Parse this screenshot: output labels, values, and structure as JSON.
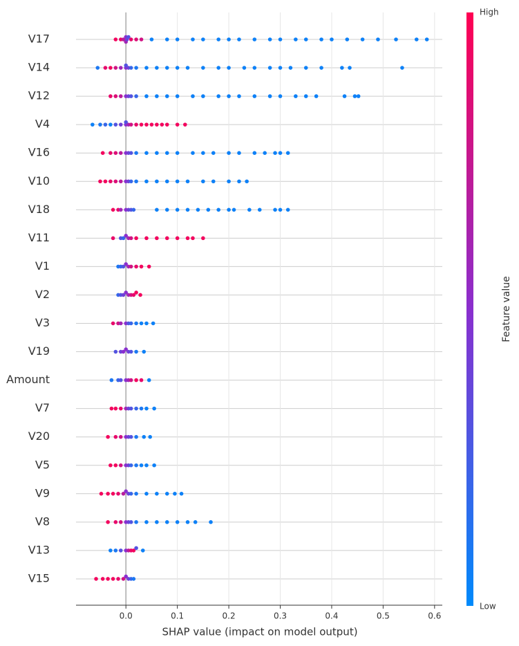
{
  "chart_data": {
    "type": "beeswarm",
    "xlabel": "SHAP value (impact on model output)",
    "xlim": [
      -0.097,
      0.615
    ],
    "xticks": [
      {
        "value": 0,
        "label": "0.0"
      },
      0.1,
      0.2,
      0.3,
      0.4,
      0.5,
      0.6
    ],
    "grid": true,
    "colormap": [
      "#008afb",
      "#8a2fce",
      "#ff0052"
    ],
    "colorbar": {
      "label": "Feature value",
      "high_label": "High",
      "low_label": "Low"
    },
    "series": [
      {
        "name": "V17",
        "values": [
          -0.02,
          -0.01,
          -0.005,
          0,
          0,
          0.002,
          0.005,
          0.01,
          0.02,
          0.03,
          0.05,
          0.08,
          0.1,
          0.13,
          0.15,
          0.18,
          0.2,
          0.22,
          0.25,
          0.28,
          0.3,
          0.33,
          0.35,
          0.38,
          0.4,
          0.43,
          0.46,
          0.49,
          0.525,
          0.565,
          0.585
        ],
        "feature_values": [
          0.95,
          0.9,
          0.7,
          0.5,
          0.6,
          0.4,
          0.3,
          0.9,
          0.85,
          0.8,
          0.05,
          0.05,
          0.05,
          0.05,
          0.05,
          0.05,
          0.05,
          0.05,
          0.05,
          0.05,
          0.05,
          0.05,
          0.05,
          0.05,
          0.05,
          0.05,
          0.05,
          0.05,
          0.05,
          0.05,
          0.05
        ]
      },
      {
        "name": "V14",
        "values": [
          -0.055,
          -0.04,
          -0.03,
          -0.02,
          -0.01,
          0,
          0,
          0.005,
          0.01,
          0.02,
          0.04,
          0.06,
          0.08,
          0.1,
          0.12,
          0.15,
          0.18,
          0.2,
          0.23,
          0.25,
          0.28,
          0.3,
          0.32,
          0.35,
          0.38,
          0.42,
          0.435,
          0.537
        ],
        "feature_values": [
          0.1,
          0.9,
          0.95,
          0.8,
          0.6,
          0.5,
          0.3,
          0.4,
          0.2,
          0.1,
          0.05,
          0.05,
          0.05,
          0.05,
          0.05,
          0.05,
          0.05,
          0.05,
          0.05,
          0.05,
          0.05,
          0.05,
          0.05,
          0.05,
          0.05,
          0.05,
          0.05,
          0.05
        ]
      },
      {
        "name": "V12",
        "values": [
          -0.03,
          -0.02,
          -0.01,
          0,
          0.005,
          0.01,
          0.02,
          0.04,
          0.06,
          0.08,
          0.1,
          0.13,
          0.15,
          0.18,
          0.2,
          0.22,
          0.25,
          0.28,
          0.3,
          0.33,
          0.35,
          0.37,
          0.425,
          0.445,
          0.452
        ],
        "feature_values": [
          0.9,
          0.85,
          0.7,
          0.5,
          0.4,
          0.3,
          0.2,
          0.05,
          0.05,
          0.05,
          0.05,
          0.05,
          0.05,
          0.05,
          0.05,
          0.05,
          0.05,
          0.05,
          0.05,
          0.05,
          0.05,
          0.05,
          0.05,
          0.05,
          0.05
        ]
      },
      {
        "name": "V4",
        "values": [
          -0.065,
          -0.05,
          -0.04,
          -0.03,
          -0.02,
          -0.01,
          0,
          0,
          0.005,
          0.01,
          0.02,
          0.03,
          0.04,
          0.05,
          0.06,
          0.07,
          0.08,
          0.1,
          0.115
        ],
        "feature_values": [
          0.05,
          0.1,
          0.2,
          0.05,
          0.3,
          0.4,
          0.5,
          0.3,
          0.6,
          0.8,
          0.9,
          0.95,
          0.95,
          0.95,
          0.95,
          0.95,
          0.95,
          0.95,
          0.95
        ]
      },
      {
        "name": "V16",
        "values": [
          -0.045,
          -0.03,
          -0.02,
          -0.01,
          0,
          0.005,
          0.01,
          0.02,
          0.04,
          0.06,
          0.08,
          0.1,
          0.13,
          0.15,
          0.17,
          0.2,
          0.22,
          0.25,
          0.27,
          0.29,
          0.3,
          0.315
        ],
        "feature_values": [
          0.95,
          0.9,
          0.85,
          0.7,
          0.5,
          0.4,
          0.3,
          0.1,
          0.05,
          0.05,
          0.05,
          0.05,
          0.05,
          0.05,
          0.05,
          0.05,
          0.05,
          0.05,
          0.05,
          0.05,
          0.05,
          0.05
        ]
      },
      {
        "name": "V10",
        "values": [
          -0.05,
          -0.04,
          -0.03,
          -0.02,
          -0.01,
          0,
          0.005,
          0.01,
          0.02,
          0.04,
          0.06,
          0.08,
          0.1,
          0.12,
          0.15,
          0.17,
          0.2,
          0.22,
          0.235
        ],
        "feature_values": [
          0.95,
          0.95,
          0.9,
          0.85,
          0.7,
          0.5,
          0.4,
          0.2,
          0.1,
          0.05,
          0.05,
          0.05,
          0.05,
          0.05,
          0.05,
          0.05,
          0.05,
          0.05,
          0.05
        ]
      },
      {
        "name": "V18",
        "values": [
          -0.025,
          -0.015,
          -0.01,
          0,
          0.005,
          0.01,
          0.015,
          0.06,
          0.08,
          0.1,
          0.12,
          0.14,
          0.16,
          0.18,
          0.2,
          0.21,
          0.24,
          0.26,
          0.29,
          0.3,
          0.315
        ],
        "feature_values": [
          0.95,
          0.9,
          0.6,
          0.5,
          0.4,
          0.3,
          0.2,
          0.05,
          0.05,
          0.05,
          0.05,
          0.05,
          0.05,
          0.05,
          0.05,
          0.05,
          0.05,
          0.05,
          0.05,
          0.05,
          0.05
        ]
      },
      {
        "name": "V11",
        "values": [
          -0.025,
          -0.01,
          -0.005,
          0,
          0.005,
          0.01,
          0.02,
          0.04,
          0.06,
          0.08,
          0.1,
          0.12,
          0.13,
          0.15
        ],
        "feature_values": [
          0.9,
          0.3,
          0.2,
          0.5,
          0.6,
          0.8,
          0.95,
          0.95,
          0.95,
          0.95,
          0.95,
          0.95,
          0.95,
          0.95
        ]
      },
      {
        "name": "V1",
        "values": [
          -0.015,
          -0.01,
          -0.005,
          0,
          0.005,
          0.01,
          0.02,
          0.03,
          0.045
        ],
        "feature_values": [
          0.1,
          0.2,
          0.3,
          0.5,
          0.6,
          0.8,
          0.9,
          0.95,
          0.95
        ]
      },
      {
        "name": "V2",
        "values": [
          -0.015,
          -0.01,
          -0.005,
          0,
          0.005,
          0.01,
          0.015,
          0.02,
          0.028
        ],
        "feature_values": [
          0.2,
          0.3,
          0.4,
          0.5,
          0.6,
          0.8,
          0.9,
          0.95,
          0.95
        ]
      },
      {
        "name": "V3",
        "values": [
          -0.025,
          -0.015,
          -0.01,
          0,
          0.005,
          0.01,
          0.02,
          0.03,
          0.04,
          0.053
        ],
        "feature_values": [
          0.9,
          0.8,
          0.6,
          0.5,
          0.3,
          0.2,
          0.1,
          0.05,
          0.05,
          0.05
        ]
      },
      {
        "name": "V19",
        "values": [
          -0.02,
          -0.01,
          -0.005,
          0,
          0.005,
          0.01,
          0.02,
          0.035
        ],
        "feature_values": [
          0.3,
          0.4,
          0.5,
          0.5,
          0.4,
          0.3,
          0.1,
          0.05
        ]
      },
      {
        "name": "Amount",
        "values": [
          -0.028,
          -0.015,
          -0.01,
          0,
          0.005,
          0.01,
          0.02,
          0.03,
          0.045
        ],
        "feature_values": [
          0.1,
          0.2,
          0.3,
          0.5,
          0.6,
          0.8,
          0.95,
          0.9,
          0.05
        ]
      },
      {
        "name": "V7",
        "values": [
          -0.028,
          -0.02,
          -0.01,
          0,
          0.005,
          0.01,
          0.02,
          0.03,
          0.04,
          0.055
        ],
        "feature_values": [
          0.95,
          0.95,
          0.9,
          0.6,
          0.4,
          0.3,
          0.2,
          0.1,
          0.05,
          0.05
        ]
      },
      {
        "name": "V20",
        "values": [
          -0.035,
          -0.02,
          -0.01,
          0,
          0.005,
          0.01,
          0.02,
          0.035,
          0.047
        ],
        "feature_values": [
          0.95,
          0.9,
          0.8,
          0.5,
          0.4,
          0.3,
          0.1,
          0.05,
          0.05
        ]
      },
      {
        "name": "V5",
        "values": [
          -0.03,
          -0.02,
          -0.01,
          0,
          0.005,
          0.01,
          0.02,
          0.03,
          0.04,
          0.055
        ],
        "feature_values": [
          0.95,
          0.95,
          0.8,
          0.5,
          0.4,
          0.2,
          0.1,
          0.05,
          0.05,
          0.05
        ]
      },
      {
        "name": "V9",
        "values": [
          -0.048,
          -0.035,
          -0.025,
          -0.015,
          -0.005,
          0,
          0.005,
          0.01,
          0.02,
          0.04,
          0.06,
          0.08,
          0.095,
          0.108
        ],
        "feature_values": [
          0.95,
          0.95,
          0.95,
          0.9,
          0.7,
          0.5,
          0.4,
          0.2,
          0.1,
          0.05,
          0.05,
          0.05,
          0.05,
          0.05
        ]
      },
      {
        "name": "V8",
        "values": [
          -0.035,
          -0.02,
          -0.01,
          0,
          0.005,
          0.01,
          0.02,
          0.04,
          0.06,
          0.08,
          0.1,
          0.12,
          0.135,
          0.165
        ],
        "feature_values": [
          0.95,
          0.9,
          0.8,
          0.5,
          0.4,
          0.3,
          0.1,
          0.05,
          0.05,
          0.05,
          0.05,
          0.05,
          0.05,
          0.05
        ]
      },
      {
        "name": "V13",
        "values": [
          -0.03,
          -0.02,
          -0.01,
          0,
          0.005,
          0.01,
          0.015,
          0.02,
          0.033
        ],
        "feature_values": [
          0.05,
          0.1,
          0.3,
          0.5,
          0.7,
          0.9,
          0.95,
          0.3,
          0.05
        ]
      },
      {
        "name": "V15",
        "values": [
          -0.058,
          -0.045,
          -0.035,
          -0.025,
          -0.015,
          -0.005,
          0,
          0.005,
          0.01,
          0.015
        ],
        "feature_values": [
          0.95,
          0.95,
          0.95,
          0.95,
          0.9,
          0.8,
          0.5,
          0.4,
          0.2,
          0.1
        ]
      }
    ]
  }
}
